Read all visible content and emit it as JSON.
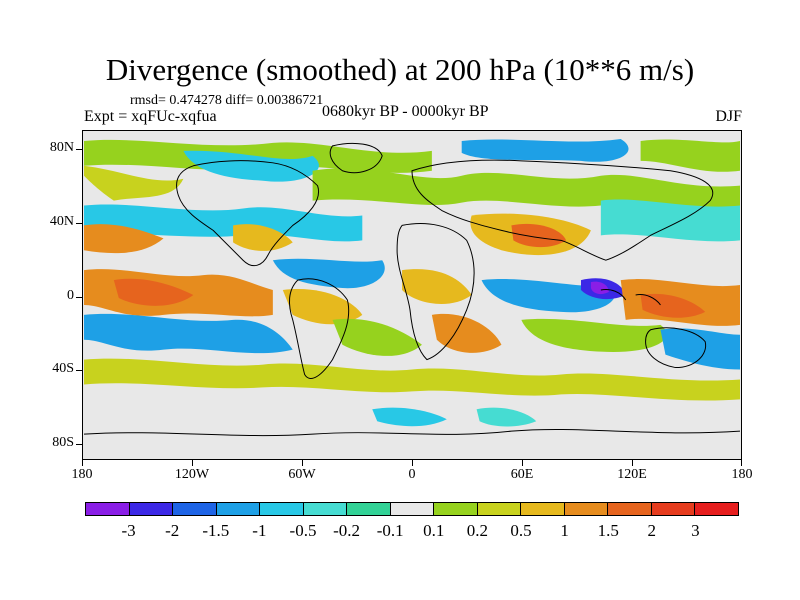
{
  "title": "Divergence (smoothed) at 200 hPa (10**6 m/s)",
  "stats": "rmsd= 0.474278 diff= 0.00386721",
  "experiment": "Expt = xqFUc-xqfua",
  "period": "0680kyr BP - 0000kyr BP",
  "season": "DJF",
  "axes": {
    "y_labels": [
      "80N",
      "40N",
      "0",
      "40S",
      "80S"
    ],
    "x_labels": [
      "180",
      "120W",
      "60W",
      "0",
      "60E",
      "120E",
      "180"
    ]
  },
  "colorbar": {
    "labels": [
      "-3",
      "-2",
      "-1.5",
      "-1",
      "-0.5",
      "-0.2",
      "-0.1",
      "0.1",
      "0.2",
      "0.5",
      "1",
      "1.5",
      "2",
      "3"
    ],
    "colors": [
      "#8a1ee6",
      "#3c28e6",
      "#1e64e6",
      "#1ea0e6",
      "#28c8e6",
      "#46dcd2",
      "#32d296",
      "#e8e8e8",
      "#96d21e",
      "#c8d21e",
      "#e6b91e",
      "#e68c1e",
      "#e6641e",
      "#e63c1e",
      "#e61e1e"
    ]
  },
  "colors": {
    "background": "#ffffff",
    "neutral_field": "#e8e8e8",
    "coastline": "#000000"
  }
}
